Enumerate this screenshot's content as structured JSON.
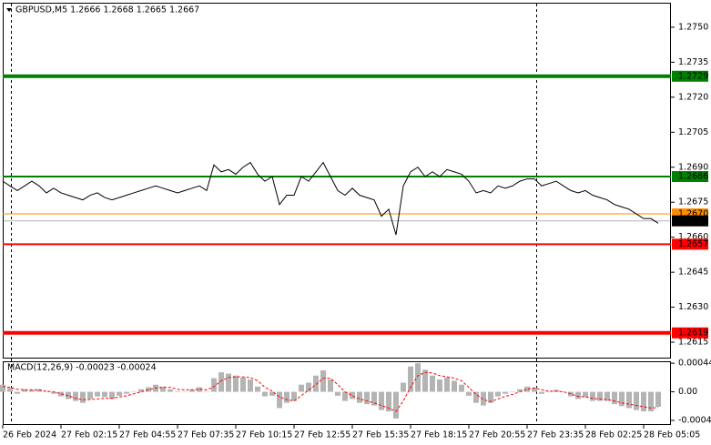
{
  "chart_data": [
    {
      "type": "line",
      "title": "GBPUSD,M5 1.2666 1.2668 1.2665 1.2667",
      "color": "#000000",
      "xlim": [
        0,
        367
      ],
      "ylim": [
        1.2608,
        1.27605
      ],
      "yticks": [
        {
          "value": 1.275,
          "label": "1.2750"
        },
        1.2735,
        {
          "value": 1.272,
          "label": "1.2720"
        },
        1.2705,
        {
          "value": 1.269,
          "label": "1.2690"
        },
        1.2675,
        {
          "value": 1.266,
          "label": "1.2660"
        },
        1.2645,
        {
          "value": 1.263,
          "label": "1.2630"
        },
        1.2615
      ],
      "levels": [
        {
          "value": 1.2729,
          "color": "#008000",
          "style": "thick"
        },
        {
          "value": 1.2686,
          "color": "#008000",
          "style": "medium"
        },
        {
          "value": 1.267,
          "label": "1.2670",
          "color": "#ff8c00",
          "style": "thin"
        },
        {
          "value": 1.2667,
          "color": "#000000",
          "style": "hair"
        },
        {
          "value": 1.2657,
          "color": "#ff0000",
          "style": "medium"
        },
        {
          "value": 1.2619,
          "color": "#ff0000",
          "style": "thick"
        }
      ],
      "x": [
        0,
        4,
        8,
        12,
        16,
        20,
        24,
        28,
        32,
        36,
        40,
        44,
        48,
        52,
        56,
        60,
        64,
        68,
        72,
        76,
        80,
        84,
        88,
        92,
        96,
        100,
        104,
        108,
        112,
        116,
        120,
        124,
        128,
        132,
        136,
        140,
        144,
        148,
        152,
        156,
        160,
        164,
        168,
        172,
        176,
        180,
        184,
        188,
        192,
        196,
        200,
        204,
        208,
        212,
        216,
        220,
        224,
        228,
        232,
        236,
        240,
        244,
        248,
        252,
        256,
        260,
        264,
        268,
        272,
        276,
        280,
        284,
        288,
        292,
        296,
        300,
        304,
        308,
        312,
        316,
        320,
        324,
        328,
        332,
        336,
        340,
        344,
        348,
        352,
        356,
        360
      ],
      "values": [
        1.2684,
        1.2682,
        1.268,
        1.2682,
        1.2684,
        1.2682,
        1.2679,
        1.2681,
        1.2679,
        1.2678,
        1.2677,
        1.2676,
        1.2678,
        1.2679,
        1.2677,
        1.2676,
        1.2677,
        1.2678,
        1.2679,
        1.268,
        1.2681,
        1.2682,
        1.2681,
        1.268,
        1.2679,
        1.268,
        1.2681,
        1.2682,
        1.268,
        1.2691,
        1.2688,
        1.2689,
        1.2687,
        1.269,
        1.2692,
        1.2687,
        1.2684,
        1.2686,
        1.2674,
        1.2678,
        1.2678,
        1.2686,
        1.2684,
        1.2688,
        1.2692,
        1.2686,
        1.268,
        1.2678,
        1.2681,
        1.2678,
        1.2677,
        1.2676,
        1.2669,
        1.2672,
        1.2661,
        1.2682,
        1.2688,
        1.269,
        1.2686,
        1.2688,
        1.2686,
        1.2689,
        1.2688,
        1.2687,
        1.2684,
        1.2679,
        1.268,
        1.2679,
        1.2682,
        1.2681,
        1.2682,
        1.2684,
        1.2685,
        1.2685,
        1.2682,
        1.2683,
        1.2684,
        1.2682,
        1.268,
        1.2679,
        1.268,
        1.2678,
        1.2677,
        1.2676,
        1.2674,
        1.2673,
        1.2672,
        1.267,
        1.2668,
        1.2668,
        1.2666
      ]
    },
    {
      "type": "macd",
      "title": "MACD(12,26,9) -0.00023 -0.00024",
      "xlim": [
        0,
        367
      ],
      "ylim": [
        -0.00051,
        0.00047
      ],
      "yticks": [
        0.00044,
        {
          "value": 0,
          "label": "0.00"
        },
        -0.00044
      ],
      "xticks": [
        {
          "value": 0,
          "label": "26 Feb 2024"
        },
        {
          "value": 32,
          "label": "27 Feb 02:15"
        },
        {
          "value": 64,
          "label": "27 Feb 04:55"
        },
        {
          "value": 96,
          "label": "27 Feb 07:35"
        },
        {
          "value": 128,
          "label": "27 Feb 10:15"
        },
        {
          "value": 160,
          "label": "27 Feb 12:55"
        },
        {
          "value": 192,
          "label": "27 Feb 15:35"
        },
        {
          "value": 224,
          "label": "27 Feb 18:15"
        },
        {
          "value": 256,
          "label": "27 Feb 20:55"
        },
        {
          "value": 288,
          "label": "27 Feb 23:35"
        },
        {
          "value": 320,
          "label": "28 Feb 02:25"
        },
        {
          "value": 352,
          "label": "28 Feb 05:05"
        }
      ],
      "x": [
        0,
        4,
        8,
        12,
        16,
        20,
        24,
        28,
        32,
        36,
        40,
        44,
        48,
        52,
        56,
        60,
        64,
        68,
        72,
        76,
        80,
        84,
        88,
        92,
        96,
        100,
        104,
        108,
        112,
        116,
        120,
        124,
        128,
        132,
        136,
        140,
        144,
        148,
        152,
        156,
        160,
        164,
        168,
        172,
        176,
        180,
        184,
        188,
        192,
        196,
        200,
        204,
        208,
        212,
        216,
        220,
        224,
        228,
        232,
        236,
        240,
        244,
        248,
        252,
        256,
        260,
        264,
        268,
        272,
        276,
        280,
        284,
        288,
        292,
        296,
        300,
        304,
        308,
        312,
        316,
        320,
        324,
        328,
        332,
        336,
        340,
        344,
        348,
        352,
        356,
        360
      ],
      "histogram": {
        "color": "#b4b4b4",
        "values": [
          0.00011,
          6e-05,
          -3e-05,
          4e-05,
          3e-05,
          4e-05,
          0,
          -3e-05,
          -7e-05,
          -0.00011,
          -0.00014,
          -0.00017,
          -0.00011,
          -7e-05,
          -8e-05,
          -0.00011,
          -6e-05,
          -3e-05,
          0,
          4e-05,
          7e-05,
          0.00011,
          8e-05,
          4e-05,
          1e-05,
          0,
          3e-05,
          7e-05,
          0,
          0.00021,
          0.0003,
          0.00028,
          0.00025,
          0.00022,
          0.00019,
          8e-05,
          -7e-05,
          -6e-05,
          -0.00025,
          -0.00017,
          -0.00014,
          0.00011,
          0.00014,
          0.00025,
          0.00033,
          0.00019,
          -6e-05,
          -0.00014,
          -0.00011,
          -0.00017,
          -0.00019,
          -0.00021,
          -0.00028,
          -0.0003,
          -0.00041,
          0.00014,
          0.00039,
          0.00044,
          0.00034,
          0.00025,
          0.00019,
          0.00022,
          0.00017,
          0.00011,
          -6e-05,
          -0.00017,
          -0.00021,
          -0.00017,
          -7e-05,
          -3e-05,
          0,
          4e-05,
          8e-05,
          6e-05,
          -3e-05,
          0,
          3e-05,
          0,
          -7e-05,
          -0.00011,
          -8e-05,
          -0.00014,
          -0.00014,
          -0.00014,
          -0.00019,
          -0.00022,
          -0.00025,
          -0.00028,
          -0.0003,
          -0.0003,
          -0.00023
        ]
      },
      "signal": {
        "color": "#ff0000",
        "values": [
          8e-05,
          7e-05,
          4e-05,
          3e-05,
          3e-05,
          3e-05,
          1e-05,
          0,
          -3e-05,
          -6e-05,
          -0.0001,
          -0.00012,
          -0.00012,
          -0.00011,
          -0.0001,
          -0.0001,
          -8e-05,
          -6e-05,
          -3e-05,
          0,
          3e-05,
          6e-05,
          7e-05,
          7e-05,
          4e-05,
          3e-05,
          3e-05,
          4e-05,
          3e-05,
          8e-05,
          0.00017,
          0.00022,
          0.00023,
          0.00023,
          0.00022,
          0.00017,
          7e-05,
          1e-05,
          -8e-05,
          -0.00012,
          -0.00014,
          -6e-05,
          3e-05,
          0.00011,
          0.00021,
          0.00021,
          0.00011,
          0,
          -6e-05,
          -0.00011,
          -0.00014,
          -0.00017,
          -0.00021,
          -0.00025,
          -0.0003,
          -0.00014,
          7e-05,
          0.00025,
          0.0003,
          0.00029,
          0.00025,
          0.00023,
          0.00021,
          0.00017,
          7e-05,
          -4e-05,
          -0.00012,
          -0.00015,
          -0.00011,
          -7e-05,
          -4e-05,
          0,
          4e-05,
          6e-05,
          3e-05,
          1e-05,
          1e-05,
          0,
          -3e-05,
          -7e-05,
          -8e-05,
          -0.0001,
          -0.00011,
          -0.00012,
          -0.00014,
          -0.00017,
          -0.00019,
          -0.00021,
          -0.00023,
          -0.00025,
          -0.00024
        ]
      }
    }
  ]
}
